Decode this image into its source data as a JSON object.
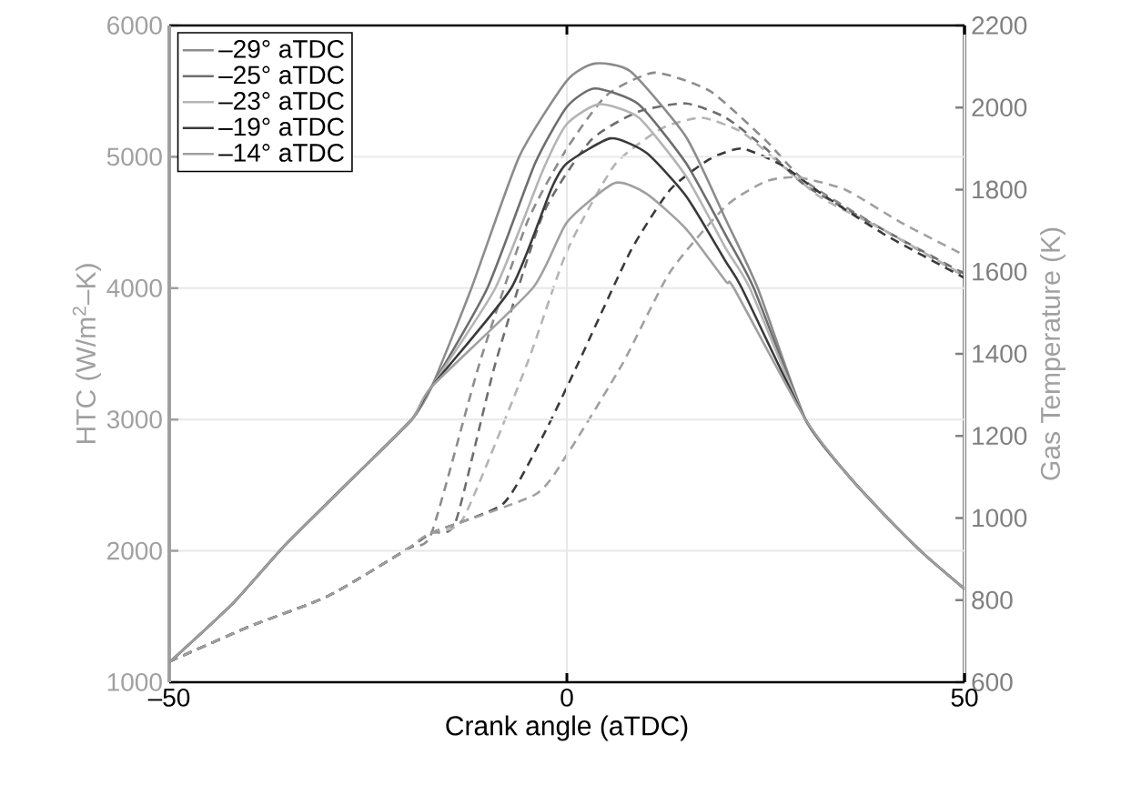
{
  "chart_data": {
    "type": "line",
    "xlabel": "Crank angle (aTDC)",
    "ylabel": "HTC (W/m$^{2}$–K)",
    "y2label": "Gas Temperature (K)",
    "xlim": [
      -50,
      50
    ],
    "xticks": [
      {
        "value": -50,
        "label": "–50"
      },
      0,
      50
    ],
    "ylim": [
      1000,
      6000
    ],
    "yticks": [
      1000,
      2000,
      3000,
      4000,
      5000,
      6000
    ],
    "y2lim": [
      600,
      2200
    ],
    "y2ticks": [
      600,
      800,
      1000,
      1200,
      1400,
      1600,
      1800,
      2000,
      2200
    ],
    "grid": true,
    "legend": "top left",
    "series": [
      {
        "name": "–29° aTDC",
        "color": "#8c8c8c",
        "line_style": "solid",
        "x": [
          -50,
          -42,
          -35.5,
          -27,
          -19.5,
          -17,
          -12,
          -6,
          0,
          3.5,
          8,
          15,
          20,
          24,
          30,
          35,
          40,
          45,
          50
        ],
        "values": [
          1150,
          1600,
          2040,
          2550,
          3000,
          3250,
          4000,
          5000,
          5580,
          5710,
          5650,
          5150,
          4520,
          4000,
          3000,
          2600,
          2270,
          1970,
          1710
        ]
      },
      {
        "name": "–25° aTDC",
        "color": "#6e6e6e",
        "line_style": "solid",
        "x": [
          -50,
          -42,
          -35.5,
          -27,
          -19.5,
          -17,
          -10,
          -4,
          0,
          3.5,
          9,
          15,
          20,
          23.5,
          30,
          35,
          40,
          45,
          50
        ],
        "values": [
          1150,
          1600,
          2040,
          2550,
          3000,
          3250,
          4000,
          4950,
          5380,
          5520,
          5400,
          4950,
          4400,
          4000,
          3000,
          2600,
          2270,
          1970,
          1710
        ]
      },
      {
        "name": "–23° aTDC",
        "color": "#b4b4b4",
        "line_style": "solid",
        "x": [
          -50,
          -42,
          -35.5,
          -27,
          -19.5,
          -17,
          -9,
          -3,
          0,
          4,
          9,
          15,
          20,
          23,
          30,
          35,
          40,
          45,
          50
        ],
        "values": [
          1150,
          1600,
          2040,
          2550,
          3000,
          3250,
          4000,
          4900,
          5250,
          5400,
          5300,
          4850,
          4300,
          4000,
          3000,
          2600,
          2270,
          1970,
          1710
        ]
      },
      {
        "name": "–19° aTDC",
        "color": "#3a3a3a",
        "line_style": "solid",
        "x": [
          -50,
          -42,
          -35.5,
          -27,
          -19.5,
          -17,
          -7,
          -2,
          0,
          5.5,
          10,
          15,
          20,
          22,
          30,
          35,
          40,
          45,
          50
        ],
        "values": [
          1150,
          1600,
          2040,
          2550,
          3000,
          3250,
          4000,
          4750,
          4950,
          5140,
          5030,
          4700,
          4200,
          4000,
          3000,
          2600,
          2270,
          1970,
          1710
        ]
      },
      {
        "name": "–14° aTDC",
        "color": "#a0a0a0",
        "line_style": "solid",
        "x": [
          -50,
          -42,
          -35.5,
          -27,
          -19.5,
          -17,
          -4.3,
          0,
          6,
          10,
          15,
          20,
          21,
          30,
          35,
          40,
          45,
          50
        ],
        "values": [
          1150,
          1600,
          2040,
          2550,
          3000,
          3250,
          4000,
          4500,
          4800,
          4720,
          4450,
          4050,
          4000,
          3000,
          2600,
          2270,
          1970,
          1710
        ]
      },
      {
        "color": "#8c8c8c",
        "line_style": "dashed",
        "axis": "y2",
        "x": [
          -50,
          -40,
          -30,
          -20,
          -17,
          -11,
          -5,
          0,
          5,
          11,
          18,
          25,
          30,
          40,
          50
        ],
        "values": [
          650,
          735,
          810,
          925,
          964,
          1376,
          1720,
          1900,
          2030,
          2085,
          2040,
          1920,
          1820,
          1700,
          1590
        ]
      },
      {
        "color": "#6e6e6e",
        "line_style": "dashed",
        "axis": "y2",
        "x": [
          -50,
          -40,
          -30,
          -20,
          -17,
          -14,
          -9,
          -3,
          3,
          9,
          15,
          20,
          25,
          30,
          40,
          50
        ],
        "values": [
          650,
          735,
          810,
          925,
          964,
          990,
          1376,
          1740,
          1920,
          1990,
          2010,
          1975,
          1900,
          1810,
          1700,
          1595
        ]
      },
      {
        "color": "#b4b4b4",
        "line_style": "dashed",
        "axis": "y2",
        "x": [
          -50,
          -40,
          -30,
          -20,
          -17,
          -13,
          -5,
          0,
          6,
          12,
          17,
          22,
          27,
          32,
          40,
          50
        ],
        "values": [
          650,
          735,
          810,
          925,
          964,
          1000,
          1376,
          1650,
          1860,
          1950,
          1975,
          1940,
          1860,
          1780,
          1700,
          1590
        ]
      },
      {
        "color": "#3a3a3a",
        "line_style": "dashed",
        "axis": "y2",
        "x": [
          -50,
          -40,
          -30,
          -20,
          -17,
          -8,
          -3,
          1.4,
          8,
          13,
          18,
          22,
          27,
          32,
          40,
          50
        ],
        "values": [
          650,
          735,
          810,
          925,
          964,
          1035,
          1200,
          1376,
          1650,
          1800,
          1875,
          1900,
          1860,
          1790,
          1690,
          1585
        ]
      },
      {
        "color": "#a0a0a0",
        "line_style": "dashed",
        "axis": "y2",
        "x": [
          -50,
          -40,
          -30,
          -20,
          -17,
          -4,
          0,
          7,
          13,
          20,
          25,
          29,
          35,
          42,
          50
        ],
        "values": [
          650,
          735,
          810,
          925,
          964,
          1057,
          1154,
          1376,
          1600,
          1760,
          1820,
          1830,
          1800,
          1720,
          1640
        ]
      }
    ]
  }
}
